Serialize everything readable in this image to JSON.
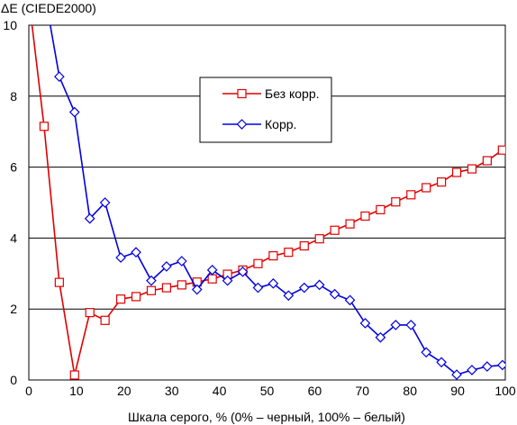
{
  "chart_data": {
    "type": "line",
    "title": "",
    "ylabel": "ΔE (CIEDE2000)",
    "xlabel": "Шкала серого, % (0% – черный, 100% – белый)",
    "xlim": [
      0,
      100
    ],
    "ylim": [
      0,
      10
    ],
    "xticks": [
      0,
      10,
      20,
      30,
      40,
      50,
      60,
      70,
      80,
      90,
      100
    ],
    "yticks": [
      0,
      2,
      4,
      6,
      8,
      10
    ],
    "grid": "horizontal",
    "legend_position": "center-right",
    "series": [
      {
        "name": "Без корр.",
        "color": "#e00000",
        "marker": "square",
        "x": [
          0.5,
          3.2,
          6.4,
          9.6,
          12.8,
          16.0,
          19.3,
          22.5,
          25.7,
          28.9,
          32.1,
          35.3,
          38.5,
          41.7,
          44.9,
          48.1,
          51.3,
          54.5,
          57.8,
          61.0,
          64.2,
          67.4,
          70.6,
          73.8,
          77.0,
          80.2,
          83.4,
          86.6,
          89.8,
          93.0,
          96.2,
          99.4
        ],
        "y": [
          10.2,
          7.15,
          2.75,
          0.14,
          1.9,
          1.68,
          2.28,
          2.35,
          2.52,
          2.6,
          2.68,
          2.76,
          2.85,
          2.98,
          3.1,
          3.28,
          3.5,
          3.6,
          3.78,
          3.98,
          4.22,
          4.4,
          4.62,
          4.8,
          5.02,
          5.22,
          5.42,
          5.58,
          5.85,
          5.95,
          6.18,
          6.48
        ]
      },
      {
        "name": "Корр.",
        "color": "#0000e0",
        "marker": "diamond",
        "x": [
          3.2,
          6.4,
          9.6,
          12.8,
          16.0,
          19.3,
          22.5,
          25.7,
          28.9,
          32.1,
          35.3,
          38.5,
          41.7,
          44.9,
          48.1,
          51.3,
          54.5,
          57.8,
          61.0,
          64.2,
          67.4,
          70.6,
          73.8,
          77.0,
          80.2,
          83.4,
          86.6,
          89.8,
          93.0,
          96.2,
          99.4
        ],
        "y": [
          11.0,
          8.55,
          7.55,
          4.55,
          5.0,
          3.45,
          3.6,
          2.8,
          3.2,
          3.35,
          2.55,
          3.1,
          2.8,
          3.05,
          2.6,
          2.72,
          2.38,
          2.6,
          2.68,
          2.42,
          2.25,
          1.6,
          1.2,
          1.55,
          1.55,
          0.78,
          0.5,
          0.15,
          0.28,
          0.38,
          0.42
        ]
      }
    ]
  }
}
